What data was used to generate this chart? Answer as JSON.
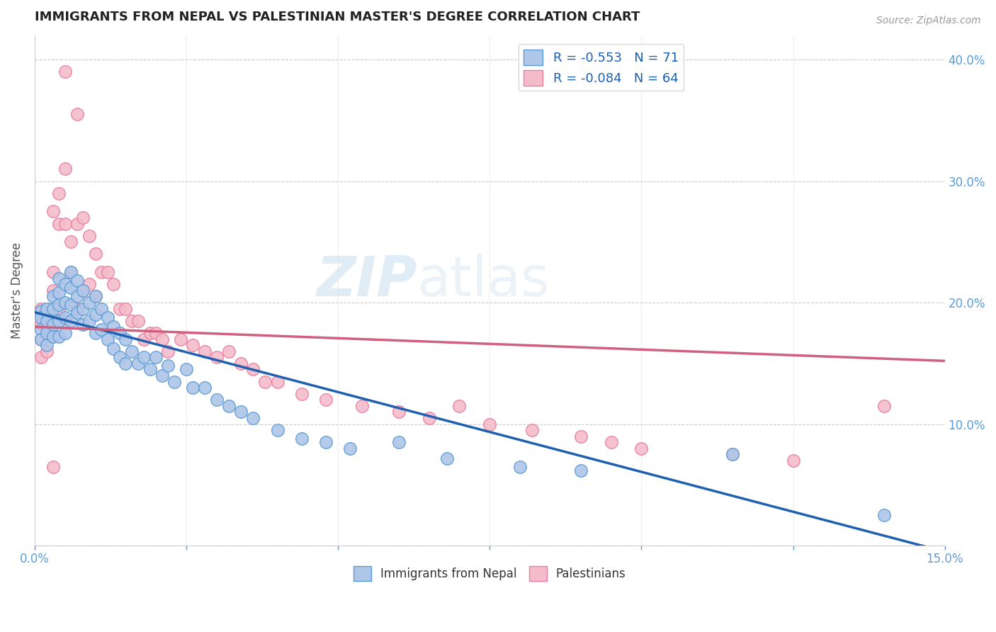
{
  "title": "IMMIGRANTS FROM NEPAL VS PALESTINIAN MASTER'S DEGREE CORRELATION CHART",
  "source": "Source: ZipAtlas.com",
  "ylabel_label": "Master's Degree",
  "xlim": [
    0.0,
    0.15
  ],
  "ylim": [
    0.0,
    0.42
  ],
  "nepal_R": -0.553,
  "nepal_N": 71,
  "palestinian_R": -0.084,
  "palestinian_N": 64,
  "nepal_color": "#aec6e8",
  "nepal_edge_color": "#5b9bd5",
  "palestinian_color": "#f4bccb",
  "palestinian_edge_color": "#e87da0",
  "nepal_line_color": "#2060b0",
  "palestinian_line_color": "#d06080",
  "nepal_line_x0": 0.0,
  "nepal_line_y0": 0.192,
  "nepal_line_x1": 0.15,
  "nepal_line_y1": -0.005,
  "pal_line_x0": 0.0,
  "pal_line_y0": 0.18,
  "pal_line_x1": 0.15,
  "pal_line_y1": 0.152,
  "watermark_zip": "ZIP",
  "watermark_atlas": "atlas",
  "nepal_scatter_x": [
    0.001,
    0.001,
    0.001,
    0.001,
    0.002,
    0.002,
    0.002,
    0.002,
    0.003,
    0.003,
    0.003,
    0.003,
    0.004,
    0.004,
    0.004,
    0.004,
    0.004,
    0.005,
    0.005,
    0.005,
    0.005,
    0.006,
    0.006,
    0.006,
    0.006,
    0.007,
    0.007,
    0.007,
    0.008,
    0.008,
    0.008,
    0.009,
    0.009,
    0.01,
    0.01,
    0.01,
    0.011,
    0.011,
    0.012,
    0.012,
    0.013,
    0.013,
    0.014,
    0.014,
    0.015,
    0.015,
    0.016,
    0.017,
    0.018,
    0.019,
    0.02,
    0.021,
    0.022,
    0.023,
    0.025,
    0.026,
    0.028,
    0.03,
    0.032,
    0.034,
    0.036,
    0.04,
    0.044,
    0.048,
    0.052,
    0.06,
    0.068,
    0.08,
    0.09,
    0.115,
    0.14
  ],
  "nepal_scatter_y": [
    0.193,
    0.188,
    0.178,
    0.17,
    0.195,
    0.185,
    0.175,
    0.165,
    0.205,
    0.195,
    0.182,
    0.172,
    0.22,
    0.208,
    0.198,
    0.185,
    0.172,
    0.215,
    0.2,
    0.188,
    0.175,
    0.225,
    0.212,
    0.198,
    0.185,
    0.218,
    0.205,
    0.192,
    0.21,
    0.195,
    0.182,
    0.2,
    0.185,
    0.205,
    0.19,
    0.175,
    0.195,
    0.178,
    0.188,
    0.17,
    0.18,
    0.162,
    0.175,
    0.155,
    0.17,
    0.15,
    0.16,
    0.15,
    0.155,
    0.145,
    0.155,
    0.14,
    0.148,
    0.135,
    0.145,
    0.13,
    0.13,
    0.12,
    0.115,
    0.11,
    0.105,
    0.095,
    0.088,
    0.085,
    0.08,
    0.085,
    0.072,
    0.065,
    0.062,
    0.075,
    0.025
  ],
  "pal_scatter_x": [
    0.001,
    0.001,
    0.001,
    0.001,
    0.002,
    0.002,
    0.002,
    0.003,
    0.003,
    0.003,
    0.004,
    0.004,
    0.004,
    0.005,
    0.005,
    0.005,
    0.006,
    0.006,
    0.007,
    0.007,
    0.008,
    0.008,
    0.009,
    0.009,
    0.01,
    0.01,
    0.011,
    0.012,
    0.013,
    0.014,
    0.015,
    0.016,
    0.017,
    0.018,
    0.019,
    0.02,
    0.021,
    0.022,
    0.024,
    0.026,
    0.028,
    0.03,
    0.032,
    0.034,
    0.036,
    0.038,
    0.04,
    0.044,
    0.048,
    0.054,
    0.06,
    0.065,
    0.07,
    0.075,
    0.082,
    0.09,
    0.095,
    0.1,
    0.115,
    0.125,
    0.005,
    0.007,
    0.003,
    0.14
  ],
  "pal_scatter_y": [
    0.195,
    0.183,
    0.17,
    0.155,
    0.19,
    0.178,
    0.16,
    0.275,
    0.225,
    0.21,
    0.29,
    0.265,
    0.195,
    0.31,
    0.265,
    0.185,
    0.25,
    0.225,
    0.265,
    0.195,
    0.27,
    0.21,
    0.255,
    0.215,
    0.24,
    0.205,
    0.225,
    0.225,
    0.215,
    0.195,
    0.195,
    0.185,
    0.185,
    0.17,
    0.175,
    0.175,
    0.17,
    0.16,
    0.17,
    0.165,
    0.16,
    0.155,
    0.16,
    0.15,
    0.145,
    0.135,
    0.135,
    0.125,
    0.12,
    0.115,
    0.11,
    0.105,
    0.115,
    0.1,
    0.095,
    0.09,
    0.085,
    0.08,
    0.075,
    0.07,
    0.39,
    0.355,
    0.065,
    0.115
  ]
}
